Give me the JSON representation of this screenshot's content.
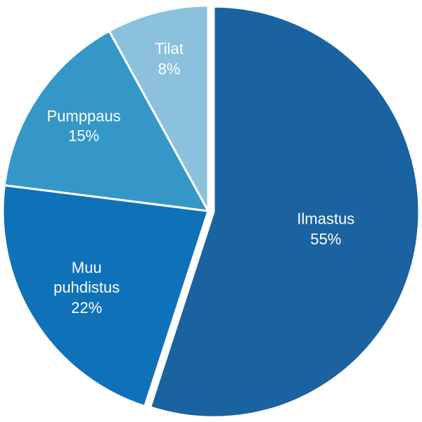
{
  "chart_data": {
    "type": "pie",
    "categories": [
      "Ilmastus",
      "Muu puhdistus",
      "Pumppaus",
      "Tilat"
    ],
    "values": [
      55,
      22,
      15,
      8
    ],
    "value_labels": [
      "55%",
      "22%",
      "15%",
      "8%"
    ],
    "colors": [
      "#1b62a0",
      "#0f72b9",
      "#3497c8",
      "#8bc1dc"
    ]
  }
}
